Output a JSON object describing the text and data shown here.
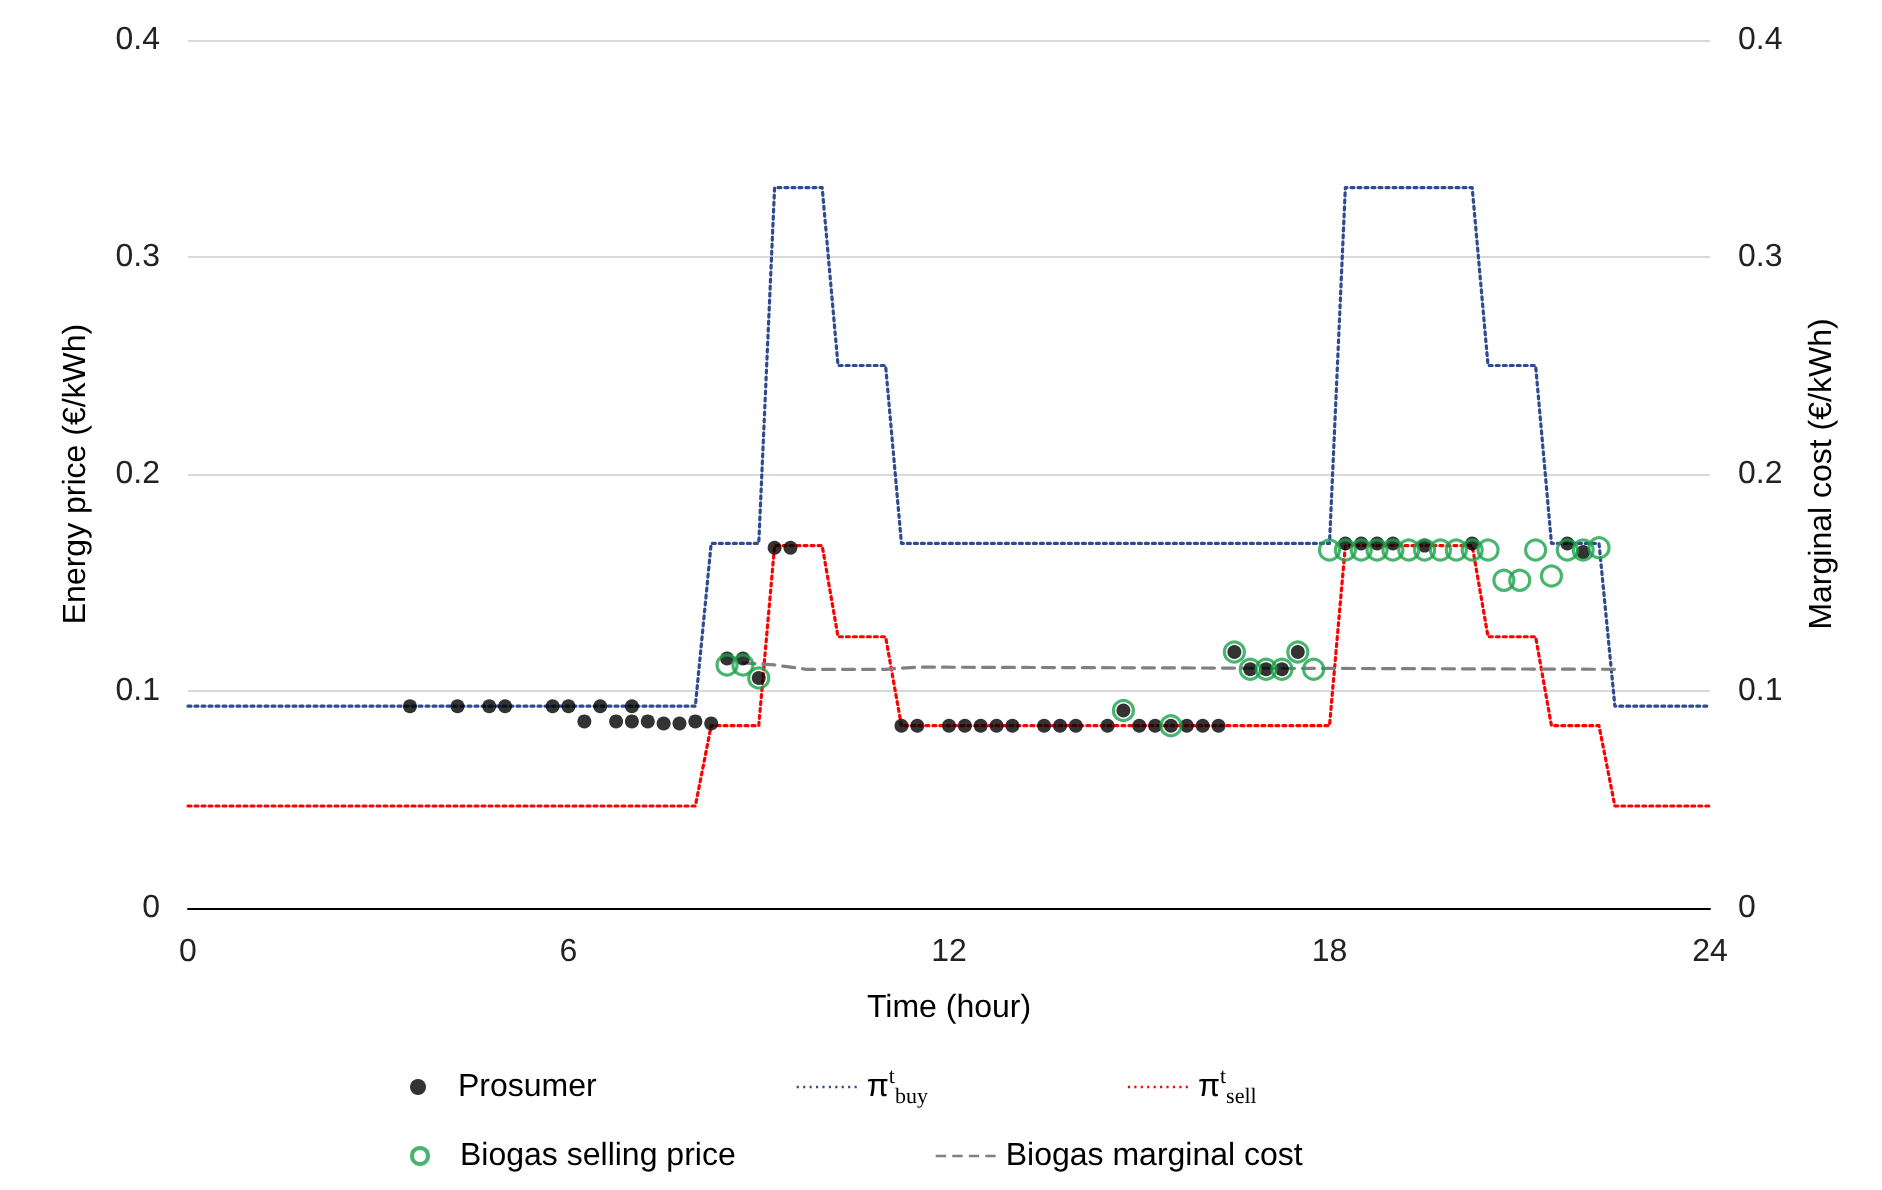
{
  "chart_data": {
    "type": "scatter",
    "xlabel": "Time (hour)",
    "ylabel": "Energy price (€/kWh)",
    "y2label": "Marginal cost (€/kWh)",
    "xlim": [
      0,
      24
    ],
    "xticks": [
      0,
      6,
      12,
      18,
      24
    ],
    "ylim": [
      0,
      0.4
    ],
    "yticks": [
      0,
      0.1,
      0.2,
      0.3,
      0.4
    ],
    "y2lim": [
      0,
      0.4
    ],
    "y2ticks": [
      0,
      0.1,
      0.2,
      0.3,
      0.4
    ],
    "grid": "y",
    "legend": "bottom",
    "series": [
      {
        "name": "Prosumer",
        "marker": "circle",
        "color": "#000000",
        "x": [
          3.5,
          4.25,
          4.75,
          5,
          5.75,
          6,
          6.25,
          6.5,
          6.75,
          7,
          7,
          7.25,
          7.5,
          7.75,
          8,
          8.25,
          8.5,
          8.75,
          9,
          9.25,
          9.5,
          11.25,
          11.5,
          12,
          12.25,
          12.5,
          12.75,
          13,
          13.5,
          13.75,
          14,
          14.5,
          14.75,
          15,
          15.25,
          15.5,
          15.75,
          16,
          16.25,
          16.5,
          16.75,
          17,
          17.25,
          17.5,
          18.25,
          18.5,
          18.75,
          19,
          19.5,
          20.25,
          21.75,
          22
        ],
        "values": [
          0.093,
          0.093,
          0.093,
          0.093,
          0.093,
          0.093,
          0.086,
          0.093,
          0.086,
          0.093,
          0.086,
          0.086,
          0.085,
          0.085,
          0.086,
          0.085,
          0.115,
          0.115,
          0.106,
          0.166,
          0.166,
          0.084,
          0.084,
          0.084,
          0.084,
          0.084,
          0.084,
          0.084,
          0.084,
          0.084,
          0.084,
          0.084,
          0.091,
          0.084,
          0.084,
          0.084,
          0.084,
          0.084,
          0.084,
          0.118,
          0.11,
          0.11,
          0.11,
          0.118,
          0.168,
          0.168,
          0.168,
          0.168,
          0.167,
          0.168,
          0.168,
          0.164
        ]
      },
      {
        "name": "π$^{t}$$_{buy}$",
        "type": "line",
        "marker": "none",
        "line_style": "dotted",
        "color": "#2f4b8f",
        "x": [
          0,
          8,
          8.25,
          9,
          9.25,
          10,
          10.25,
          11,
          11.25,
          18,
          18.25,
          20.25,
          20.5,
          21.25,
          21.5,
          22.25,
          22.5,
          24
        ],
        "values": [
          0.093,
          0.093,
          0.168,
          0.168,
          0.332,
          0.332,
          0.25,
          0.25,
          0.168,
          0.168,
          0.332,
          0.332,
          0.25,
          0.25,
          0.168,
          0.168,
          0.093,
          0.093
        ]
      },
      {
        "name": "π$^{t}$$_{sell}$",
        "type": "line",
        "marker": "none",
        "line_style": "dotted",
        "color": "#ff0000",
        "x": [
          0,
          8,
          8.25,
          9,
          9.25,
          10,
          10.25,
          11,
          11.25,
          18,
          18.25,
          20.25,
          20.5,
          21.25,
          21.5,
          22.25,
          22.5,
          24
        ],
        "values": [
          0.047,
          0.047,
          0.084,
          0.084,
          0.167,
          0.167,
          0.125,
          0.125,
          0.084,
          0.084,
          0.167,
          0.167,
          0.125,
          0.125,
          0.084,
          0.084,
          0.047,
          0.047
        ]
      },
      {
        "name": "Biogas selling price",
        "marker": "circle",
        "color": "#1aa34a",
        "x": [
          8.5,
          8.75,
          9,
          14.75,
          15.5,
          16.5,
          16.75,
          17,
          17.25,
          17.5,
          17.75,
          18,
          18.25,
          18.5,
          18.75,
          19,
          19.25,
          19.5,
          19.75,
          20,
          20.25,
          20.5,
          20.75,
          21,
          21.25,
          21.5,
          21.75,
          22,
          22.25
        ],
        "values": [
          0.112,
          0.112,
          0.106,
          0.091,
          0.084,
          0.118,
          0.11,
          0.11,
          0.11,
          0.118,
          0.11,
          0.165,
          0.165,
          0.165,
          0.165,
          0.165,
          0.165,
          0.165,
          0.165,
          0.165,
          0.165,
          0.165,
          0.151,
          0.151,
          0.165,
          0.153,
          0.165,
          0.165,
          0.166
        ]
      },
      {
        "name": "Biogas marginal cost",
        "type": "line",
        "marker": "none",
        "line_style": "dashed",
        "color": "#808080",
        "x": [
          8.75,
          9.25,
          9.75,
          11,
          11.5,
          22.5
        ],
        "values": [
          0.113,
          0.112,
          0.11,
          0.11,
          0.111,
          0.11
        ]
      }
    ]
  }
}
